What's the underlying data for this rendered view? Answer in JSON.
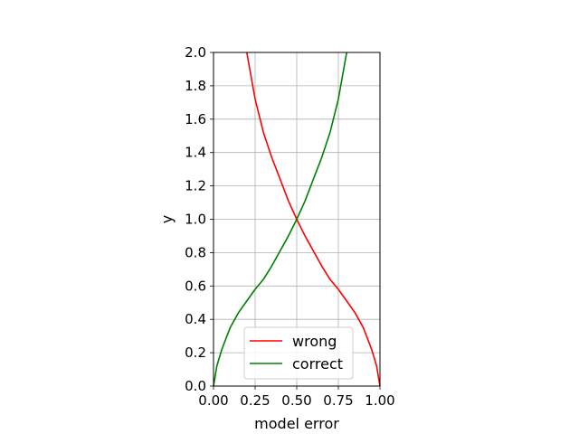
{
  "chart_data": {
    "type": "line",
    "title": "",
    "xlabel": "model error",
    "ylabel": "y",
    "xlim": [
      0.0,
      1.0
    ],
    "ylim": [
      0.0,
      2.0
    ],
    "x_ticks": [
      0.0,
      0.25,
      0.5,
      0.75,
      1.0
    ],
    "x_tick_labels": [
      "0.00",
      "0.25",
      "0.50",
      "0.75",
      "1.00"
    ],
    "y_ticks": [
      0.0,
      0.2,
      0.4,
      0.6,
      0.8,
      1.0,
      1.2,
      1.4,
      1.6,
      1.8,
      2.0
    ],
    "y_tick_labels": [
      "0.0",
      "0.2",
      "0.4",
      "0.6",
      "0.8",
      "1.0",
      "1.2",
      "1.4",
      "1.6",
      "1.8",
      "2.0"
    ],
    "grid": true,
    "legend_position": "bottom-center",
    "series": [
      {
        "name": "wrong",
        "color": "#ff0000",
        "x": [
          0.2,
          0.25,
          0.3,
          0.35,
          0.4,
          0.45,
          0.5,
          0.55,
          0.6,
          0.65,
          0.7,
          0.75,
          0.8,
          0.85,
          0.9,
          0.95,
          0.98,
          1.0
        ],
        "y": [
          2.0,
          1.72,
          1.52,
          1.37,
          1.24,
          1.11,
          1.0,
          0.9,
          0.81,
          0.72,
          0.64,
          0.58,
          0.51,
          0.44,
          0.35,
          0.22,
          0.12,
          0.0
        ]
      },
      {
        "name": "correct",
        "color": "#008000",
        "x": [
          0.0,
          0.02,
          0.05,
          0.1,
          0.15,
          0.2,
          0.25,
          0.3,
          0.35,
          0.4,
          0.45,
          0.5,
          0.55,
          0.6,
          0.65,
          0.7,
          0.75,
          0.8
        ],
        "y": [
          0.0,
          0.12,
          0.22,
          0.35,
          0.44,
          0.51,
          0.58,
          0.64,
          0.72,
          0.81,
          0.9,
          1.0,
          1.11,
          1.24,
          1.37,
          1.52,
          1.72,
          2.0
        ]
      }
    ]
  }
}
